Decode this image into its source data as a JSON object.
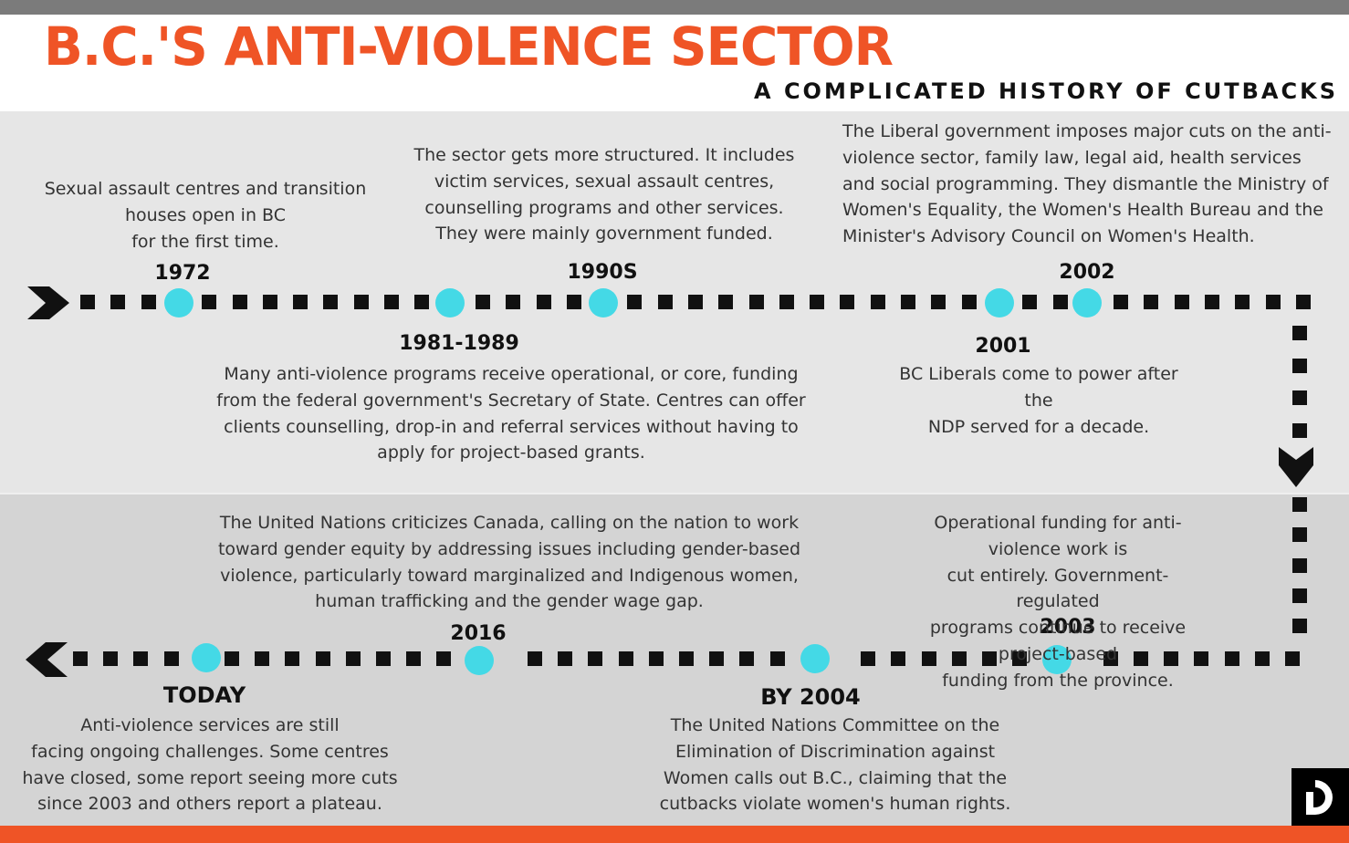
{
  "header": {
    "title": "B.C.'S ANTI-VIOLENCE SECTOR",
    "subtitle": "A COMPLICATED HISTORY OF CUTBACKS"
  },
  "colors": {
    "accent_orange": "#ef5426",
    "marker_cyan": "#44d9e6",
    "top_band": "#e6e6e6",
    "bottom_band": "#d4d4d4",
    "top_bar": "#7b7b7b"
  },
  "timeline": {
    "top_row": [
      {
        "label": "1972",
        "text": "Sexual assault centres and transition\nhouses open in BC\nfor the first time."
      },
      {
        "label": "1981-1989",
        "text": "Many anti-violence programs receive operational, or core, funding\nfrom the federal government's Secretary of State. Centres can offer\nclients counselling, drop-in and referral services without having to\napply for project-based grants."
      },
      {
        "label": "1990S",
        "text": "The sector gets more structured. It includes\nvictim services, sexual assault centres,\ncounselling programs and other services.\nThey were mainly government funded."
      },
      {
        "label": "2001",
        "text": "BC Liberals come to power after the\nNDP served for a decade."
      },
      {
        "label": "2002",
        "text": "The Liberal government imposes major cuts on the anti-\nviolence sector, family law, legal aid, health services\nand social programming. They dismantle the Ministry of\nWomen's Equality, the Women's Health Bureau and the\nMinister's Advisory Council on Women's Health."
      }
    ],
    "bottom_row": [
      {
        "label": "2003",
        "text": "Operational funding for anti-violence work is\ncut entirely. Government-regulated\nprograms continue to receive project-based\nfunding from the province."
      },
      {
        "label": "BY 2004",
        "text": "The United Nations Committee on the\nElimination of Discrimination against\nWomen calls out B.C., claiming that the\ncutbacks violate women's human rights."
      },
      {
        "label": "2016",
        "text": "The United Nations criticizes Canada, calling on the nation to work\ntoward gender equity by addressing issues including gender-based\nviolence, particularly toward marginalized and Indigenous women,\nhuman trafficking and the gender wage gap."
      },
      {
        "label": "TODAY",
        "text": "Anti-violence services are still\nfacing ongoing challenges. Some centres\nhave closed, some report seeing more cuts\nsince 2003 and others report a plateau."
      }
    ]
  },
  "logo": {
    "letter": "D"
  }
}
